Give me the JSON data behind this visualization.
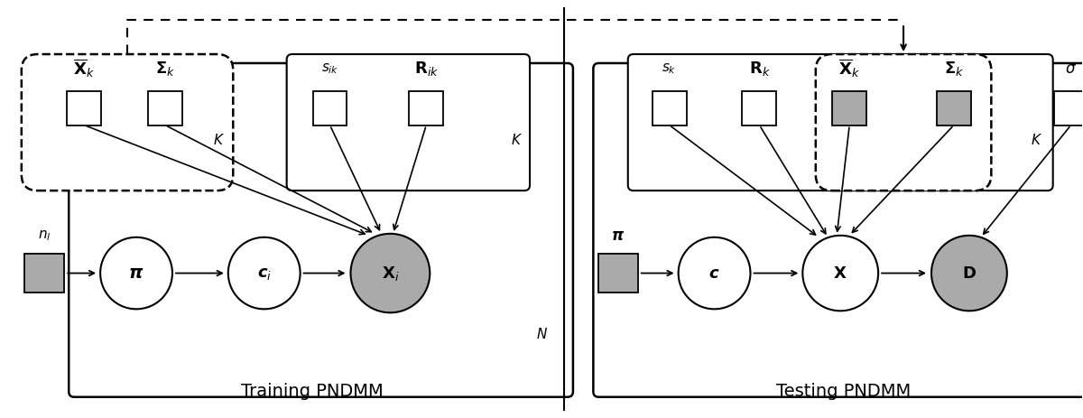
{
  "fig_width": 12.0,
  "fig_height": 4.63,
  "bg_color": "#ffffff",
  "gray_fill": "#aaaaaa",
  "training_title": "Training PNDMM",
  "testing_title": "Testing PNDMM"
}
